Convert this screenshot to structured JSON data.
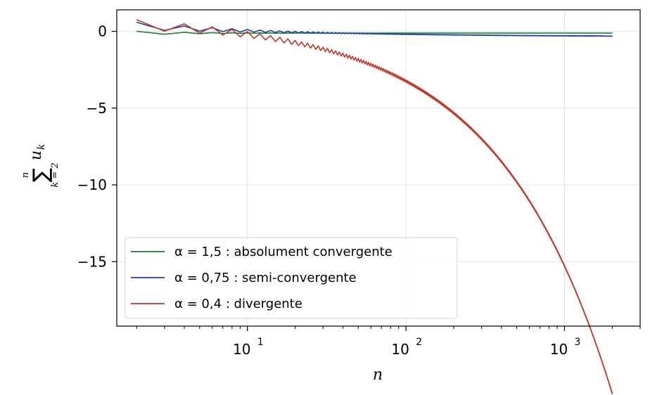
{
  "chart_data": {
    "type": "line",
    "title": "",
    "xlabel": "n",
    "ylabel": "∑ u_k (k=2..n)",
    "ylabel_parts": {
      "sum": "∑",
      "top": "n",
      "bottom": "k = 2",
      "term": "u",
      "term_sub": "k"
    },
    "xscale": "log",
    "xlim": [
      1.5,
      3000
    ],
    "ylim": [
      -19.2,
      1.4
    ],
    "x_ticks": [
      {
        "value": 10,
        "base": "10",
        "exp": "1"
      },
      {
        "value": 100,
        "base": "10",
        "exp": "2"
      },
      {
        "value": 1000,
        "base": "10",
        "exp": "3"
      }
    ],
    "y_ticks": [
      {
        "value": 0,
        "label": "0"
      },
      {
        "value": -5,
        "label": "−5"
      },
      {
        "value": -10,
        "label": "−10"
      },
      {
        "value": -15,
        "label": "−15"
      }
    ],
    "grid": true,
    "legend_position": "lower-left",
    "n_range": [
      2,
      2000
    ],
    "series": [
      {
        "name": "α = 1,5 : absolument convergente",
        "alpha": 1.5,
        "color": "#1a7f37"
      },
      {
        "name": "α = 0,75 : semi-convergente",
        "alpha": 0.75,
        "color": "#1f3fa8"
      },
      {
        "name": "α = 0,4 : divergente",
        "alpha": 0.4,
        "color": "#c0392b"
      }
    ]
  }
}
